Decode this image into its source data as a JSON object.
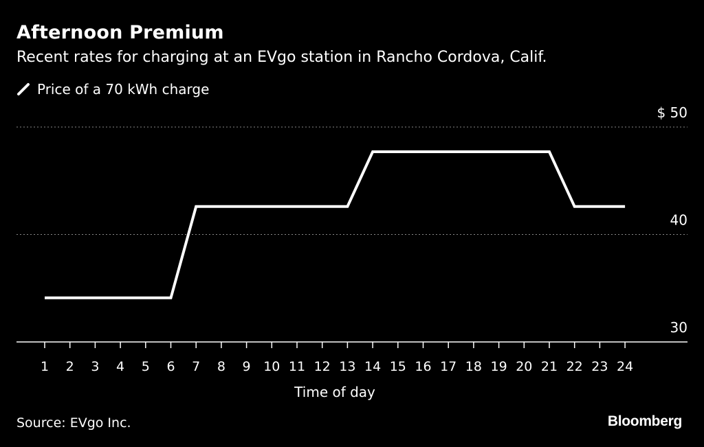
{
  "header": {
    "title": "Afternoon Premium",
    "subtitle": "Recent rates for charging at an EVgo station in Rancho Cordova, Calif."
  },
  "legend": {
    "label": "Price of a 70 kWh charge",
    "icon": "line-swatch-icon"
  },
  "footer": {
    "source": "Source: EVgo Inc.",
    "brand": "Bloomberg"
  },
  "colors": {
    "background": "#000000",
    "line": "#ffffff",
    "grid": "#8a8a8a",
    "text": "#ffffff"
  },
  "chart_data": {
    "type": "line",
    "title": "Afternoon Premium",
    "subtitle": "Recent rates for charging at an EVgo station in Rancho Cordova, Calif.",
    "xlabel": "Time of day",
    "ylabel": "",
    "x": [
      1,
      2,
      3,
      4,
      5,
      6,
      7,
      8,
      9,
      10,
      11,
      12,
      13,
      14,
      15,
      16,
      17,
      18,
      19,
      20,
      21,
      22,
      23,
      24
    ],
    "x_tick_labels": [
      "1",
      "2",
      "3",
      "4",
      "5",
      "6",
      "7",
      "8",
      "9",
      "10",
      "11",
      "12",
      "13",
      "14",
      "15",
      "16",
      "17",
      "18",
      "19",
      "20",
      "21",
      "22",
      "23",
      "24"
    ],
    "series": [
      {
        "name": "Price of a 70 kWh charge",
        "values": [
          34.1,
          34.1,
          34.1,
          34.1,
          34.1,
          34.1,
          42.6,
          42.6,
          42.6,
          42.6,
          42.6,
          42.6,
          42.6,
          47.7,
          47.7,
          47.7,
          47.7,
          47.7,
          47.7,
          47.7,
          47.7,
          42.6,
          42.6,
          42.6
        ]
      }
    ],
    "ylim": [
      30,
      50
    ],
    "y_ticks": [
      30,
      40,
      50
    ],
    "y_tick_labels": [
      "30",
      "40",
      "$ 50"
    ],
    "y_axis_position": "right",
    "grid": "horizontal dotted",
    "legend_position": "top-left"
  }
}
